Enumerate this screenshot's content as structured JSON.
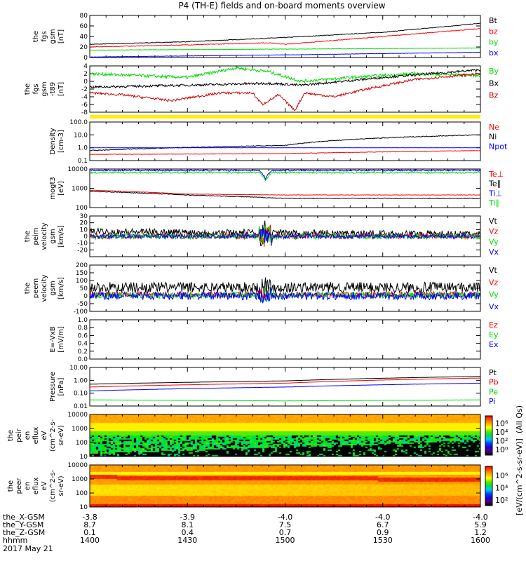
{
  "title": "P4 (TH-E) fields and on-board moments overview",
  "chart_data": {
    "type": "line",
    "time_range_minutes": [
      0,
      120
    ],
    "panels": [
      {
        "id": "fgs",
        "ylabel": [
          "the",
          "fgs",
          "gsm",
          "[nT]"
        ],
        "scale": "linear",
        "ylim": [
          0,
          80
        ],
        "ticks": [
          "0",
          "20",
          "40",
          "60",
          "80"
        ],
        "tickvals": [
          0,
          20,
          40,
          60,
          80
        ],
        "series": [
          {
            "name": "Bt",
            "color": "#000000",
            "t": [
              0,
              30,
              60,
              90,
              120
            ],
            "v": [
              25,
              30,
              38,
              48,
              65
            ],
            "noise": 0.6
          },
          {
            "name": "bz",
            "color": "#ff0000",
            "t": [
              0,
              30,
              55,
              60,
              90,
              120
            ],
            "v": [
              20,
              24,
              28,
              25,
              40,
              55
            ],
            "noise": 0.6
          },
          {
            "name": "by",
            "color": "#00dd00",
            "t": [
              0,
              60,
              120
            ],
            "v": [
              14,
              16,
              18
            ],
            "noise": 0.4
          },
          {
            "name": "bx",
            "color": "#0000ff",
            "t": [
              0,
              60,
              120
            ],
            "v": [
              1,
              5,
              10
            ],
            "noise": 0.3
          }
        ]
      },
      {
        "id": "fgs-t89",
        "ylabel": [
          "the",
          "fgs",
          "gsm",
          "-t89",
          "[nT]"
        ],
        "scale": "linear",
        "ylim": [
          -8,
          4
        ],
        "ticks": [
          "-8",
          "-6",
          "-4",
          "-2",
          "0",
          "2",
          "4"
        ],
        "tickvals": [
          -8,
          -6,
          -4,
          -2,
          0,
          2,
          4
        ],
        "series": [
          {
            "name": "By",
            "color": "#00dd00",
            "t": [
              0,
              15,
              30,
              45,
              55,
              65,
              80,
              100,
              120
            ],
            "v": [
              2,
              1.5,
              1,
              3.5,
              2.5,
              0,
              1,
              2,
              1.5
            ],
            "noise": 0.4
          },
          {
            "name": "Bx",
            "color": "#000000",
            "t": [
              0,
              30,
              55,
              65,
              90,
              120
            ],
            "v": [
              -1.5,
              -1,
              -0.5,
              -1,
              1,
              3
            ],
            "noise": 0.3
          },
          {
            "name": "Bz",
            "color": "#cc0000",
            "t": [
              0,
              10,
              25,
              40,
              50,
              53,
              58,
              63,
              66,
              75,
              85,
              100,
              120
            ],
            "v": [
              -3,
              -3.5,
              -5,
              -3,
              -3,
              -6,
              -3.5,
              -7.5,
              -3,
              -4,
              -2,
              0.5,
              2
            ],
            "noise": 0.3
          }
        ]
      },
      {
        "id": "density",
        "ylabel": [
          "Density",
          "[cm-3]"
        ],
        "scale": "log",
        "ylim": [
          0.1,
          100
        ],
        "ticks": [
          "0.1",
          "1.0",
          "10.0",
          "100.0"
        ],
        "tickvals": [
          0.1,
          1,
          10,
          100
        ],
        "series": [
          {
            "name": "Ne",
            "color": "#ff0000",
            "t": [
              0,
              60,
              120
            ],
            "v": [
              0.3,
              0.35,
              0.6
            ],
            "noise": 0.02
          },
          {
            "name": "Ni",
            "color": "#000000",
            "t": [
              0,
              60,
              120
            ],
            "v": [
              0.6,
              1.5,
              10
            ],
            "noise": 0.03
          },
          {
            "name": "Npot",
            "color": "#0000ff",
            "t": [
              0,
              120
            ],
            "v": [
              1,
              1
            ],
            "noise": 0.005
          }
        ]
      },
      {
        "id": "temperature",
        "ylabel": [
          "mogt3",
          "[eV]"
        ],
        "scale": "log",
        "ylim": [
          100,
          10000
        ],
        "ticks": [
          "100",
          "1000",
          "10000"
        ],
        "tickvals": [
          100,
          1000,
          10000
        ],
        "series": [
          {
            "name": "Te⊥",
            "color": "#ff0000",
            "t": [
              0,
              30,
              60,
              120
            ],
            "v": [
              800,
              500,
              450,
              450
            ],
            "noise": 0.01
          },
          {
            "name": "Te∥",
            "color": "#000000",
            "t": [
              0,
              30,
              60,
              120
            ],
            "v": [
              700,
              450,
              300,
              300
            ],
            "noise": 0.02
          },
          {
            "name": "Ti⊥",
            "color": "#0000ff",
            "t": [
              0,
              52,
              54,
              56,
              120
            ],
            "v": [
              8500,
              8500,
              3000,
              8500,
              8500
            ],
            "noise": 0.04
          },
          {
            "name": "Ti∥",
            "color": "#00dd00",
            "t": [
              0,
              52,
              54,
              56,
              120
            ],
            "v": [
              6500,
              6500,
              2500,
              6500,
              6500
            ],
            "noise": 0.04
          }
        ]
      },
      {
        "id": "peim-velocity",
        "ylabel": [
          "the",
          "peim",
          "velocity",
          "gsm",
          "[km/s]"
        ],
        "scale": "linear",
        "ylim": [
          -30,
          30
        ],
        "ticks": [
          "-20",
          "-10",
          "0",
          "10",
          "20",
          "30"
        ],
        "tickvals": [
          -20,
          -10,
          0,
          10,
          20,
          30
        ],
        "series": [
          {
            "name": "Vt",
            "color": "#000000",
            "t": [
              0,
              60,
              120
            ],
            "v": [
              7,
              5,
              3
            ],
            "noise": 5
          },
          {
            "name": "Vz",
            "color": "#ff0000",
            "t": [
              0,
              120
            ],
            "v": [
              0,
              0
            ],
            "noise": 4
          },
          {
            "name": "Vy",
            "color": "#00dd00",
            "t": [
              0,
              120
            ],
            "v": [
              0,
              0
            ],
            "noise": 4
          },
          {
            "name": "Vx",
            "color": "#0000ff",
            "t": [
              0,
              120
            ],
            "v": [
              0,
              0
            ],
            "noise": 3
          }
        ]
      },
      {
        "id": "peem-velocity",
        "ylabel": [
          "the",
          "peem",
          "velocity",
          "gsm",
          "[km/s]"
        ],
        "scale": "linear",
        "ylim": [
          -100,
          200
        ],
        "ticks": [
          "-100",
          "-50",
          "0",
          "50",
          "100",
          "150",
          "200"
        ],
        "tickvals": [
          -100,
          -50,
          0,
          50,
          100,
          150,
          200
        ],
        "series": [
          {
            "name": "Vt",
            "color": "#000000",
            "t": [
              0,
              120
            ],
            "v": [
              55,
              55
            ],
            "noise": 35
          },
          {
            "name": "Vz",
            "color": "#ff0000",
            "t": [
              0,
              120
            ],
            "v": [
              10,
              10
            ],
            "noise": 18
          },
          {
            "name": "Vy",
            "color": "#00dd00",
            "t": [
              0,
              120
            ],
            "v": [
              5,
              5
            ],
            "noise": 20
          },
          {
            "name": "Vx",
            "color": "#0000ff",
            "t": [
              0,
              120
            ],
            "v": [
              0,
              0
            ],
            "noise": 25
          }
        ]
      },
      {
        "id": "efield",
        "ylabel": [
          "E=-VxB",
          "[mV/m]"
        ],
        "scale": "linear",
        "ylim": [
          0,
          1
        ],
        "ticks": [
          "0.0",
          "0.2",
          "0.4",
          "0.6",
          "0.8",
          "1.0"
        ],
        "tickvals": [
          0,
          0.2,
          0.4,
          0.6,
          0.8,
          1.0
        ],
        "series": [
          {
            "name": "Ez",
            "color": "#ff0000",
            "t": [],
            "v": [],
            "noise": 0
          },
          {
            "name": "Ey",
            "color": "#00dd00",
            "t": [],
            "v": [],
            "noise": 0
          },
          {
            "name": "Ex",
            "color": "#0000ff",
            "t": [],
            "v": [],
            "noise": 0
          }
        ]
      },
      {
        "id": "pressure",
        "ylabel": [
          "Pressure",
          "[nPa]"
        ],
        "scale": "log",
        "ylim": [
          0.01,
          10
        ],
        "ticks": [
          "0.01",
          "0.10",
          "1.00",
          "10.00"
        ],
        "tickvals": [
          0.01,
          0.1,
          1,
          10
        ],
        "series": [
          {
            "name": "Pt",
            "color": "#000000",
            "t": [
              0,
              60,
              120
            ],
            "v": [
              0.5,
              0.9,
              2.0
            ],
            "noise": 0.005
          },
          {
            "name": "Pb",
            "color": "#ff0000",
            "t": [
              0,
              60,
              120
            ],
            "v": [
              0.3,
              0.6,
              1.5
            ],
            "noise": 0.005
          },
          {
            "name": "Pe",
            "color": "#00dd00",
            "t": [
              0,
              60,
              120
            ],
            "v": [
              0.03,
              0.025,
              0.03
            ],
            "noise": 0.005
          },
          {
            "name": "Pi",
            "color": "#0000ff",
            "t": [
              0,
              60,
              120
            ],
            "v": [
              0.15,
              0.3,
              0.6
            ],
            "noise": 0.005
          }
        ]
      }
    ],
    "spectrograms": [
      {
        "id": "peir",
        "ylabel": [
          "the",
          "peir",
          "en",
          "eflux",
          "eV",
          "(cm^2-s-",
          "sr-eV)"
        ],
        "ylim": [
          10,
          10000
        ],
        "ticks": [
          "10",
          "100",
          "1000",
          "10000"
        ],
        "tickvals": [
          10,
          100,
          1000,
          10000
        ],
        "colorbar_ticks": [
          "10⁰",
          "10²",
          "10⁴",
          "10⁶"
        ]
      },
      {
        "id": "peer",
        "ylabel": [
          "the",
          "peer",
          "en",
          "eflux",
          "eV",
          "(cm^2-s-",
          "sr-eV)"
        ],
        "ylim": [
          10,
          10000
        ],
        "ticks": [
          "10",
          "100",
          "1000",
          "10000"
        ],
        "tickvals": [
          10,
          100,
          1000,
          10000
        ],
        "colorbar_ticks": [
          "10²",
          "10⁴",
          "10⁶"
        ]
      }
    ],
    "colorbar_label": "[eV/(cm^2-s-sr-eV)]",
    "colorbar_label2": "(All Qs)",
    "xaxis": {
      "rows": [
        {
          "label": "the_X-GSM",
          "values": [
            "-3.8",
            "-3.9",
            "-4.0",
            "-4.0",
            "-4.0"
          ]
        },
        {
          "label": "the_Y-GSM",
          "values": [
            "8.7",
            "8.1",
            "7.5",
            "6.7",
            "5.9"
          ]
        },
        {
          "label": "the_Z-GSM",
          "values": [
            "0.1",
            "0.4",
            "0.7",
            "0.9",
            "1.2"
          ]
        },
        {
          "label": "hhmm",
          "values": [
            "1400",
            "1430",
            "1500",
            "1530",
            "1600"
          ]
        }
      ],
      "date": "2017 May 21"
    }
  }
}
